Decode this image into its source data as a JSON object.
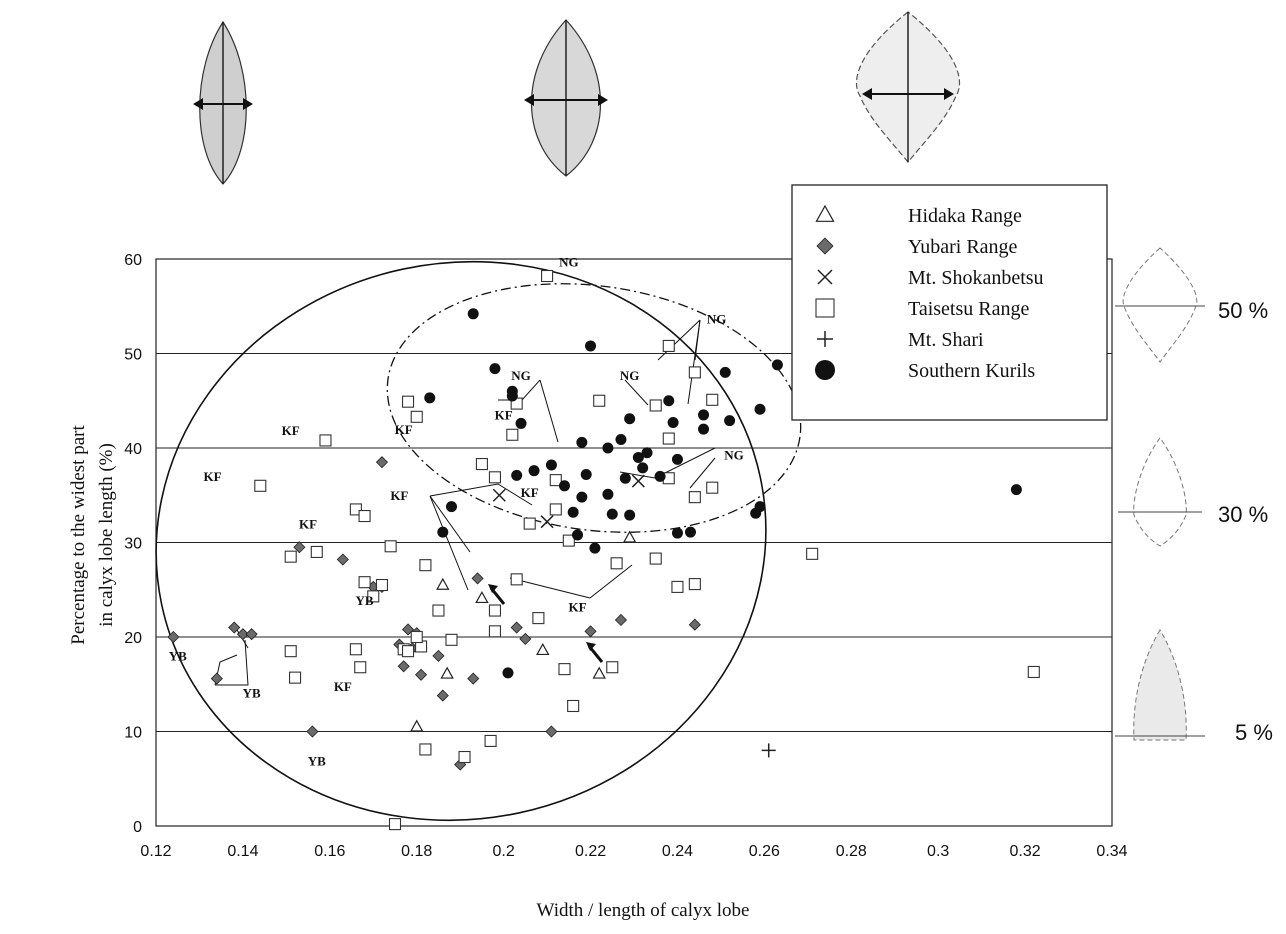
{
  "chart_data": {
    "type": "scatter",
    "title": "",
    "xlabel": "Width / length of calyx lobe",
    "ylabel": [
      "Percentage to the widest part",
      "in calyx lobe length  (%)"
    ],
    "xlim": [
      0.12,
      0.34
    ],
    "ylim": [
      0,
      60
    ],
    "x_ticks": [
      "0.12",
      "0.14",
      "0.16",
      "0.18",
      "0.2",
      "0.22",
      "0.24",
      "0.26",
      "0.28",
      "0.3",
      "0.32",
      "0.34"
    ],
    "y_ticks": [
      "0",
      "10",
      "20",
      "30",
      "40",
      "50",
      "60"
    ],
    "grid": "horizontal",
    "legend_position": "top-right",
    "right_labels": [
      "50 %",
      "30 %",
      "5 %"
    ],
    "series": [
      {
        "name": "Hidaka Range",
        "marker": "triangle",
        "points": [
          [
            0.186,
            25.5
          ],
          [
            0.195,
            24.1
          ],
          [
            0.187,
            16.1
          ],
          [
            0.18,
            10.5
          ],
          [
            0.209,
            18.6
          ],
          [
            0.222,
            16.1
          ],
          [
            0.229,
            30.5
          ]
        ]
      },
      {
        "name": "Yubari Range",
        "marker": "diamond",
        "points": [
          [
            0.124,
            20
          ],
          [
            0.138,
            21
          ],
          [
            0.14,
            20.3
          ],
          [
            0.142,
            20.3
          ],
          [
            0.134,
            15.6
          ],
          [
            0.156,
            10
          ],
          [
            0.153,
            29.5
          ],
          [
            0.163,
            28.2
          ],
          [
            0.172,
            38.5
          ],
          [
            0.17,
            25.3
          ],
          [
            0.172,
            25.3
          ],
          [
            0.176,
            19.2
          ],
          [
            0.178,
            20.8
          ],
          [
            0.18,
            20.4
          ],
          [
            0.177,
            16.9
          ],
          [
            0.181,
            16
          ],
          [
            0.179,
            18.8
          ],
          [
            0.185,
            18
          ],
          [
            0.186,
            13.8
          ],
          [
            0.19,
            6.5
          ],
          [
            0.193,
            15.6
          ],
          [
            0.194,
            26.2
          ],
          [
            0.203,
            21
          ],
          [
            0.205,
            19.8
          ],
          [
            0.211,
            10
          ],
          [
            0.22,
            20.6
          ],
          [
            0.227,
            21.8
          ],
          [
            0.244,
            21.3
          ]
        ]
      },
      {
        "name": "Mt. Shokanbetsu",
        "marker": "x",
        "points": [
          [
            0.199,
            35
          ],
          [
            0.21,
            32.2
          ],
          [
            0.231,
            36.5
          ]
        ]
      },
      {
        "name": "Taisetsu Range",
        "marker": "square",
        "points": [
          [
            0.21,
            58.2
          ],
          [
            0.238,
            50.8
          ],
          [
            0.248,
            45.1
          ],
          [
            0.244,
            48
          ],
          [
            0.178,
            44.9
          ],
          [
            0.18,
            43.3
          ],
          [
            0.159,
            40.8
          ],
          [
            0.144,
            36
          ],
          [
            0.166,
            33.5
          ],
          [
            0.168,
            32.8
          ],
          [
            0.157,
            29
          ],
          [
            0.151,
            28.5
          ],
          [
            0.174,
            29.6
          ],
          [
            0.182,
            27.6
          ],
          [
            0.168,
            25.8
          ],
          [
            0.17,
            24.3
          ],
          [
            0.172,
            25.5
          ],
          [
            0.185,
            22.8
          ],
          [
            0.177,
            18.7
          ],
          [
            0.178,
            18.5
          ],
          [
            0.181,
            19
          ],
          [
            0.18,
            20
          ],
          [
            0.188,
            19.7
          ],
          [
            0.166,
            18.7
          ],
          [
            0.151,
            18.5
          ],
          [
            0.167,
            16.8
          ],
          [
            0.152,
            15.7
          ],
          [
            0.182,
            8.1
          ],
          [
            0.191,
            7.3
          ],
          [
            0.197,
            9
          ],
          [
            0.175,
            0.2
          ],
          [
            0.216,
            12.7
          ],
          [
            0.214,
            16.6
          ],
          [
            0.225,
            16.8
          ],
          [
            0.198,
            20.6
          ],
          [
            0.198,
            22.8
          ],
          [
            0.203,
            26.1
          ],
          [
            0.208,
            22
          ],
          [
            0.198,
            36.9
          ],
          [
            0.195,
            38.3
          ],
          [
            0.202,
            41.4
          ],
          [
            0.203,
            44.7
          ],
          [
            0.222,
            45
          ],
          [
            0.235,
            44.5
          ],
          [
            0.238,
            41
          ],
          [
            0.238,
            36.8
          ],
          [
            0.244,
            34.8
          ],
          [
            0.248,
            35.8
          ],
          [
            0.212,
            36.6
          ],
          [
            0.212,
            33.5
          ],
          [
            0.206,
            32
          ],
          [
            0.215,
            30.2
          ],
          [
            0.226,
            27.8
          ],
          [
            0.235,
            28.3
          ],
          [
            0.24,
            25.3
          ],
          [
            0.244,
            25.6
          ],
          [
            0.271,
            28.8
          ],
          [
            0.322,
            16.3
          ]
        ]
      },
      {
        "name": "Mt. Shari",
        "marker": "plus",
        "points": [
          [
            0.261,
            8
          ]
        ]
      },
      {
        "name": "Southern Kurils",
        "marker": "circle",
        "points": [
          [
            0.193,
            54.2
          ],
          [
            0.198,
            48.4
          ],
          [
            0.202,
            45.5
          ],
          [
            0.202,
            46
          ],
          [
            0.204,
            42.6
          ],
          [
            0.218,
            40.6
          ],
          [
            0.22,
            50.8
          ],
          [
            0.224,
            40
          ],
          [
            0.227,
            40.9
          ],
          [
            0.229,
            43.1
          ],
          [
            0.231,
            39
          ],
          [
            0.233,
            39.5
          ],
          [
            0.232,
            37.9
          ],
          [
            0.236,
            37
          ],
          [
            0.238,
            45
          ],
          [
            0.239,
            42.7
          ],
          [
            0.24,
            38.8
          ],
          [
            0.24,
            31
          ],
          [
            0.243,
            31.1
          ],
          [
            0.246,
            42
          ],
          [
            0.246,
            43.5
          ],
          [
            0.251,
            48
          ],
          [
            0.252,
            42.9
          ],
          [
            0.259,
            44.1
          ],
          [
            0.258,
            33.1
          ],
          [
            0.259,
            33.8
          ],
          [
            0.263,
            48.8
          ],
          [
            0.318,
            35.6
          ],
          [
            0.211,
            38.2
          ],
          [
            0.207,
            37.6
          ],
          [
            0.203,
            37.1
          ],
          [
            0.214,
            36
          ],
          [
            0.216,
            33.2
          ],
          [
            0.218,
            34.8
          ],
          [
            0.219,
            37.2
          ],
          [
            0.217,
            30.8
          ],
          [
            0.221,
            29.4
          ],
          [
            0.224,
            35.1
          ],
          [
            0.225,
            33
          ],
          [
            0.228,
            36.8
          ],
          [
            0.229,
            32.9
          ],
          [
            0.188,
            33.8
          ],
          [
            0.186,
            31.1
          ],
          [
            0.183,
            45.3
          ],
          [
            0.201,
            16.2
          ]
        ]
      }
    ],
    "annotations": [
      {
        "text": "NG",
        "x": 0.215,
        "y": 59.2
      },
      {
        "text": "NG",
        "x": 0.249,
        "y": 53.2
      },
      {
        "text": "NG",
        "x": 0.204,
        "y": 47.2
      },
      {
        "text": "NG",
        "x": 0.229,
        "y": 47.2
      },
      {
        "text": "NG",
        "x": 0.253,
        "y": 38.8
      },
      {
        "text": "KF",
        "x": 0.2,
        "y": 43
      },
      {
        "text": "KF",
        "x": 0.177,
        "y": 41.5
      },
      {
        "text": "KF",
        "x": 0.151,
        "y": 41.4
      },
      {
        "text": "KF",
        "x": 0.133,
        "y": 36.5
      },
      {
        "text": "KF",
        "x": 0.155,
        "y": 31.5
      },
      {
        "text": "KF",
        "x": 0.176,
        "y": 34.5
      },
      {
        "text": "KF",
        "x": 0.206,
        "y": 34.8
      },
      {
        "text": "KF",
        "x": 0.217,
        "y": 22.7
      },
      {
        "text": "KF",
        "x": 0.163,
        "y": 14.3
      },
      {
        "text": "YB",
        "x": 0.168,
        "y": 23.4
      },
      {
        "text": "YB",
        "x": 0.125,
        "y": 17.5
      },
      {
        "text": "YB",
        "x": 0.142,
        "y": 13.6
      },
      {
        "text": "YB",
        "x": 0.157,
        "y": 6.4
      }
    ]
  }
}
